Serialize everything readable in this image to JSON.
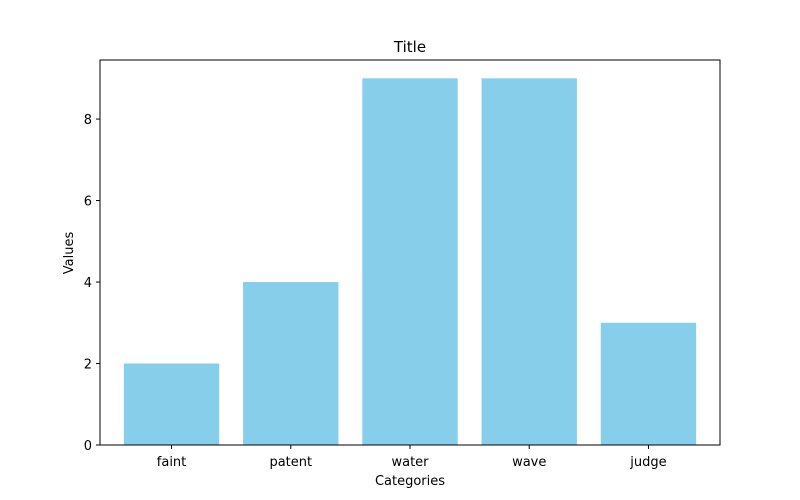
{
  "chart_data": {
    "type": "bar",
    "title": "Title",
    "xlabel": "Categories",
    "ylabel": "Values",
    "categories": [
      "faint",
      "patent",
      "water",
      "wave",
      "judge"
    ],
    "values": [
      2,
      4,
      9,
      9,
      3
    ],
    "ylim": [
      0,
      9.45
    ],
    "yticks": [
      0,
      2,
      4,
      6,
      8
    ],
    "bar_color": "#87ceeb",
    "grid": false,
    "legend": "none"
  }
}
